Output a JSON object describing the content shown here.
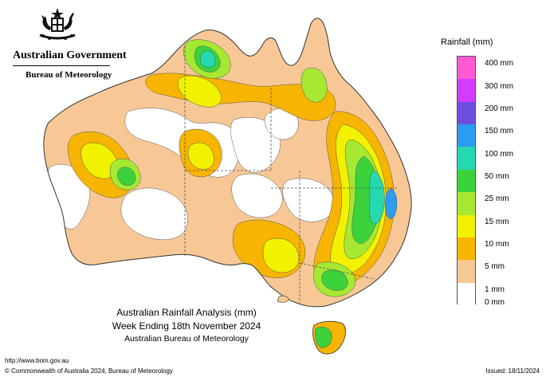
{
  "header": {
    "government": "Australian Government",
    "bureau": "Bureau of Meteorology",
    "crest_icon": "coat-of-arms-icon"
  },
  "caption": {
    "title": "Australian Rainfall Analysis (mm)",
    "week": "Week Ending 18th November 2024",
    "agency": "Australian Bureau of Meteorology"
  },
  "footer": {
    "url": "http://www.bom.gov.au",
    "copyright": "© Commonwealth of Australia 2024, Bureau of Meteorology",
    "issued": "Issued: 18/11/2024"
  },
  "legend": {
    "title": "Rainfall (mm)",
    "bands": [
      {
        "label": "400 mm",
        "color": "#ff5ad2"
      },
      {
        "label": "300 mm",
        "color": "#d23cff"
      },
      {
        "label": "200 mm",
        "color": "#6f4fe0"
      },
      {
        "label": "150 mm",
        "color": "#2d9cf0"
      },
      {
        "label": "100 mm",
        "color": "#25d8b0"
      },
      {
        "label": "50 mm",
        "color": "#3cd23c"
      },
      {
        "label": "25 mm",
        "color": "#a6e832"
      },
      {
        "label": "15 mm",
        "color": "#f2f200"
      },
      {
        "label": "10 mm",
        "color": "#f7b400"
      },
      {
        "label": "5 mm",
        "color": "#f7c896"
      },
      {
        "label": "1 mm",
        "color": "#ffffff"
      },
      {
        "label": "0 mm",
        "color": "#ffffff"
      }
    ]
  },
  "map": {
    "region": "Australia",
    "colors": {
      "none": "#ffffff",
      "light": "#f7c896",
      "orange": "#f7b400",
      "yellow": "#f2f200",
      "lightgreen": "#a6e832",
      "green": "#3cd23c",
      "teal": "#25d8b0",
      "blue": "#2d9cf0"
    }
  }
}
